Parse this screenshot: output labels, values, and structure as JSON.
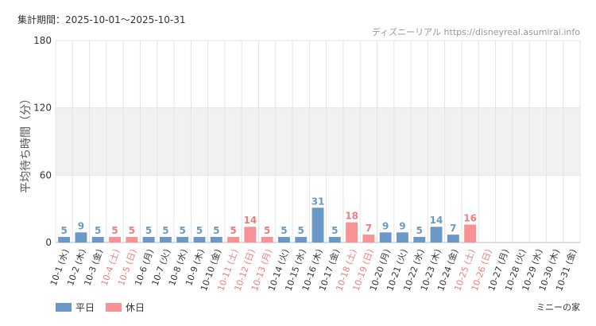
{
  "header": {
    "period": "集計期間：2025-10-01～2025-10-31",
    "site": "ディズニーリアル https://disneyreal.asumirai.info"
  },
  "footer": {
    "character": "ミニーの家"
  },
  "colors": {
    "weekday": "#6a99c7",
    "holiday": "#f99294",
    "holiday_label": "#f07c7e",
    "band": "#f1f1f1",
    "grid": "#e4e4e4"
  },
  "chart_data": {
    "type": "bar",
    "title": "",
    "xlabel": "",
    "ylabel": "平均待ち時間（分）",
    "ylim": [
      0,
      180
    ],
    "yticks": [
      0,
      60,
      120,
      180
    ],
    "grid": true,
    "legend_position": "bottom-left",
    "legend": [
      {
        "name": "平日",
        "kind": "weekday"
      },
      {
        "name": "休日",
        "kind": "holiday"
      }
    ],
    "categories": [
      "10-1 (水)",
      "10-2 (木)",
      "10-3 (金)",
      "10-4 (土)",
      "10-5 (日)",
      "10-6 (月)",
      "10-7 (火)",
      "10-8 (水)",
      "10-9 (木)",
      "10-10 (金)",
      "10-11 (土)",
      "10-12 (日)",
      "10-13 (月)",
      "10-14 (火)",
      "10-15 (水)",
      "10-16 (木)",
      "10-17 (金)",
      "10-18 (土)",
      "10-19 (日)",
      "10-20 (月)",
      "10-21 (火)",
      "10-22 (水)",
      "10-23 (木)",
      "10-24 (金)",
      "10-25 (土)",
      "10-26 (日)",
      "10-27 (月)",
      "10-28 (火)",
      "10-29 (水)",
      "10-30 (木)",
      "10-31 (金)"
    ],
    "values": [
      5,
      9,
      5,
      5,
      5,
      5,
      5,
      5,
      5,
      5,
      5,
      14,
      5,
      5,
      5,
      31,
      5,
      18,
      7,
      9,
      9,
      5,
      14,
      7,
      16,
      null,
      null,
      null,
      null,
      null,
      null
    ],
    "day_kind": [
      "weekday",
      "weekday",
      "weekday",
      "holiday",
      "holiday",
      "weekday",
      "weekday",
      "weekday",
      "weekday",
      "weekday",
      "holiday",
      "holiday",
      "holiday",
      "weekday",
      "weekday",
      "weekday",
      "weekday",
      "holiday",
      "holiday",
      "weekday",
      "weekday",
      "weekday",
      "weekday",
      "weekday",
      "holiday",
      "holiday",
      "weekday",
      "weekday",
      "weekday",
      "weekday",
      "weekday"
    ]
  }
}
